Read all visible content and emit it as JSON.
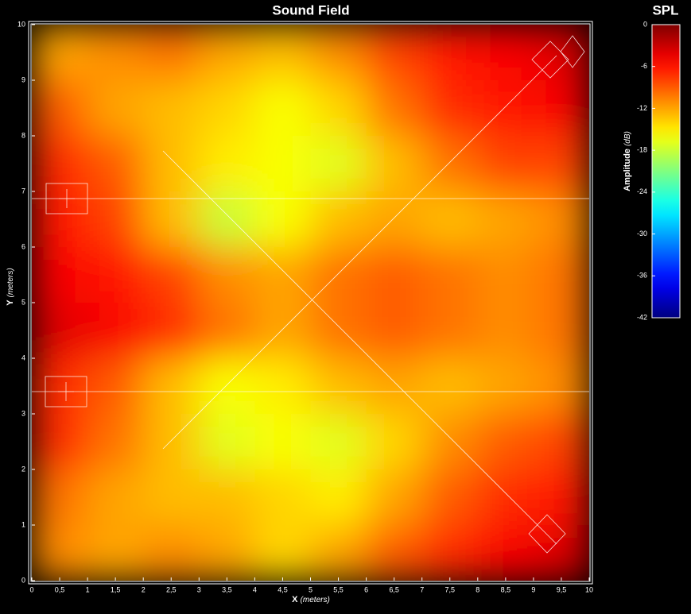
{
  "chart_data": {
    "type": "heatmap",
    "title": "Sound Field",
    "xlabel": "X",
    "xunit": "(meters)",
    "ylabel": "Y",
    "yunit": "(meters)",
    "colorbar_title": "SPL",
    "colorbar_label": "Amplitude",
    "colorbar_unit": "(dB)",
    "colormap": "jet",
    "x": [
      0.5,
      1.5,
      2.5,
      3.5,
      4.5,
      5.5,
      6.5,
      7.5,
      8.5,
      9.5
    ],
    "y": [
      9.5,
      8.5,
      7.5,
      6.5,
      5.5,
      4.5,
      3.5,
      2.5,
      1.5,
      0.5
    ],
    "z": [
      [
        -12,
        -11,
        -10,
        -12,
        -13,
        -11,
        -8,
        -6,
        -5,
        -4
      ],
      [
        -9,
        -12,
        -13,
        -14,
        -16,
        -14,
        -10,
        -7,
        -6,
        -5
      ],
      [
        -7,
        -9,
        -13,
        -15,
        -16,
        -17,
        -13,
        -10,
        -8,
        -8
      ],
      [
        -6,
        -8,
        -13,
        -18,
        -16,
        -13,
        -12,
        -13,
        -12,
        -11
      ],
      [
        -5,
        -6,
        -8,
        -11,
        -12,
        -10,
        -9,
        -10,
        -11,
        -10
      ],
      [
        -4,
        -5,
        -7,
        -10,
        -12,
        -10,
        -9,
        -10,
        -11,
        -10
      ],
      [
        -7,
        -9,
        -13,
        -16,
        -15,
        -13,
        -12,
        -13,
        -12,
        -11
      ],
      [
        -7,
        -10,
        -13,
        -17,
        -16,
        -17,
        -14,
        -11,
        -9,
        -8
      ],
      [
        -10,
        -12,
        -13,
        -13,
        -14,
        -15,
        -12,
        -9,
        -7,
        -6
      ],
      [
        -11,
        -12,
        -11,
        -12,
        -14,
        -12,
        -9,
        -7,
        -5,
        -4
      ]
    ],
    "xlim": [
      0,
      10
    ],
    "ylim": [
      0,
      10
    ],
    "clim": [
      -42,
      0
    ],
    "xticks": [
      0,
      {
        "value": 0.5,
        "label": "0,5"
      },
      1,
      {
        "value": 1.5,
        "label": "1,5"
      },
      2,
      {
        "value": 2.5,
        "label": "2,5"
      },
      3,
      {
        "value": 3.5,
        "label": "3,5"
      },
      4,
      {
        "value": 4.5,
        "label": "4,5"
      },
      5,
      {
        "value": 5.5,
        "label": "5,5"
      },
      6,
      {
        "value": 6.5,
        "label": "6,5"
      },
      7,
      {
        "value": 7.5,
        "label": "7,5"
      },
      8,
      {
        "value": 8.5,
        "label": "8,5"
      },
      9,
      {
        "value": 9.5,
        "label": "9,5"
      },
      10
    ],
    "yticks": [
      0,
      1,
      2,
      3,
      4,
      5,
      6,
      7,
      8,
      9,
      10
    ],
    "cticks": [
      0,
      -6,
      -12,
      -18,
      -24,
      -30,
      -36,
      -42
    ]
  }
}
